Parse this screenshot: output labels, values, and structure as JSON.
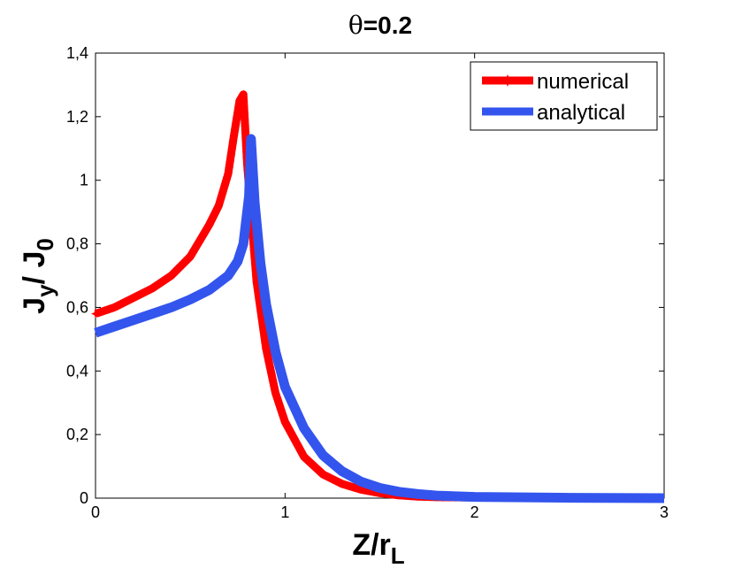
{
  "chart_data": {
    "type": "line",
    "title_prefix": "θ",
    "title_value": "=0.2",
    "xlabel_main": "Z/r",
    "xlabel_sub": "L",
    "ylabel_j1": "J",
    "ylabel_sub1": "y",
    "ylabel_sep": "/ ",
    "ylabel_j2": "J",
    "ylabel_sub2": "0",
    "xlim": [
      0,
      3
    ],
    "ylim": [
      0,
      1.4
    ],
    "xticks": [
      0,
      1,
      2,
      3
    ],
    "xtick_labels": [
      "0",
      "1",
      "2",
      "3"
    ],
    "yticks": [
      0,
      0.2,
      0.4,
      0.6,
      0.8,
      1.0,
      1.2,
      1.4
    ],
    "ytick_labels": [
      "0",
      "0,2",
      "0,4",
      "0,6",
      "0,8",
      "1",
      "1,2",
      "1,4"
    ],
    "legend_position": "top-right",
    "series": [
      {
        "name": "numerical",
        "color": "#ff0000",
        "marker": "star",
        "x": [
          0,
          0.1,
          0.2,
          0.3,
          0.4,
          0.5,
          0.55,
          0.6,
          0.65,
          0.7,
          0.73,
          0.76,
          0.78,
          0.8,
          0.82,
          0.85,
          0.9,
          0.95,
          1.0,
          1.1,
          1.2,
          1.3,
          1.4,
          1.5,
          1.6,
          1.7,
          1.8,
          2.0,
          2.2,
          2.5,
          2.8,
          3.0
        ],
        "y": [
          0.58,
          0.6,
          0.63,
          0.66,
          0.7,
          0.76,
          0.81,
          0.86,
          0.92,
          1.02,
          1.14,
          1.25,
          1.27,
          1.05,
          0.9,
          0.68,
          0.47,
          0.33,
          0.24,
          0.13,
          0.075,
          0.045,
          0.027,
          0.016,
          0.009,
          0.005,
          0.003,
          0.002,
          0.001,
          0.001,
          0.001,
          0.001
        ]
      },
      {
        "name": "analytical",
        "color": "#3355ee",
        "marker": "none",
        "x": [
          0,
          0.1,
          0.2,
          0.3,
          0.4,
          0.5,
          0.6,
          0.7,
          0.75,
          0.78,
          0.81,
          0.82,
          0.84,
          0.87,
          0.9,
          0.95,
          1.0,
          1.1,
          1.2,
          1.3,
          1.4,
          1.5,
          1.6,
          1.7,
          1.8,
          2.0,
          2.5,
          3.0
        ],
        "y": [
          0.52,
          0.54,
          0.56,
          0.58,
          0.6,
          0.625,
          0.655,
          0.7,
          0.745,
          0.8,
          0.95,
          1.13,
          0.93,
          0.74,
          0.61,
          0.46,
          0.35,
          0.22,
          0.135,
          0.085,
          0.052,
          0.032,
          0.02,
          0.013,
          0.008,
          0.004,
          0.001,
          0.0
        ]
      }
    ]
  }
}
